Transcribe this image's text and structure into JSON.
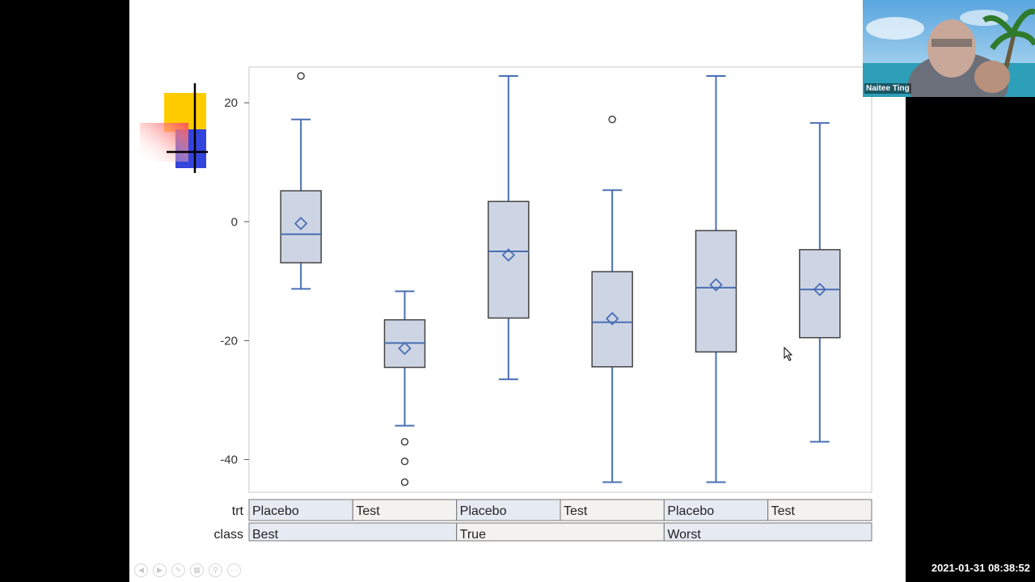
{
  "webcam": {
    "participant_name": "Naitee Ting"
  },
  "timestamp": "2021-01-31 08:38:52",
  "slide_nav": {
    "icons": [
      "prev-icon",
      "next-icon",
      "pen-icon",
      "slides-icon",
      "zoom-icon",
      "more-icon"
    ]
  },
  "colors": {
    "box_fill": "#cdd5e4",
    "box_stroke": "#4a6fb5",
    "band_light": "#e6ebf3",
    "band_alt": "#f3f2ee"
  },
  "chart_data": {
    "type": "box",
    "y_ticks": [
      20,
      0,
      -20,
      -40
    ],
    "ylim": [
      -45.5,
      26
    ],
    "axis_table": {
      "row_labels": [
        "trt",
        "class"
      ],
      "trt": [
        "Placebo",
        "Test",
        "Placebo",
        "Test",
        "Placebo",
        "Test"
      ],
      "class": [
        "Best",
        "True",
        "Worst"
      ]
    },
    "boxes": [
      {
        "trt": "Placebo",
        "class": "Best",
        "whisker_low": -11.3,
        "q1": -6.9,
        "median": -2.1,
        "mean": -0.3,
        "q3": 5.2,
        "whisker_high": 17.2,
        "outliers": [
          24.5
        ]
      },
      {
        "trt": "Test",
        "class": "Best",
        "whisker_low": -34.3,
        "q1": -24.5,
        "median": -20.4,
        "mean": -21.3,
        "q3": -16.5,
        "whisker_high": -11.7,
        "outliers": [
          -37.0,
          -40.3,
          -43.8
        ]
      },
      {
        "trt": "Placebo",
        "class": "True",
        "whisker_low": -26.5,
        "q1": -16.2,
        "median": -5.0,
        "mean": -5.6,
        "q3": 3.4,
        "whisker_high": 24.5,
        "outliers": []
      },
      {
        "trt": "Test",
        "class": "True",
        "whisker_low": -43.8,
        "q1": -24.4,
        "median": -16.9,
        "mean": -16.3,
        "q3": -8.4,
        "whisker_high": 5.3,
        "outliers": [
          17.2
        ]
      },
      {
        "trt": "Placebo",
        "class": "Worst",
        "whisker_low": -43.8,
        "q1": -21.9,
        "median": -11.1,
        "mean": -10.6,
        "q3": -1.5,
        "whisker_high": 24.5,
        "outliers": []
      },
      {
        "trt": "Test",
        "class": "Worst",
        "whisker_low": -37.0,
        "q1": -19.5,
        "median": -11.4,
        "mean": -11.4,
        "q3": -4.7,
        "whisker_high": 16.6,
        "outliers": []
      }
    ]
  }
}
